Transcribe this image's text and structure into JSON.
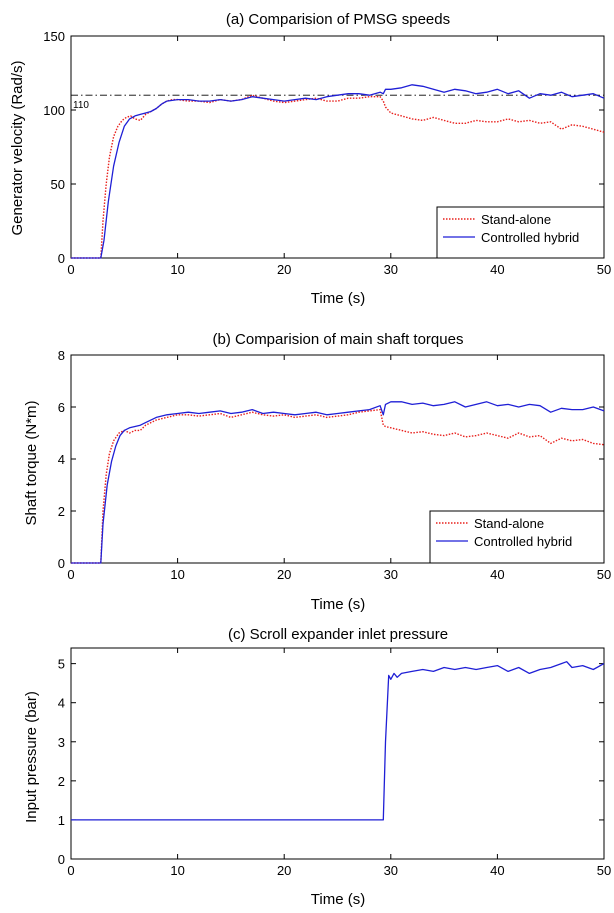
{
  "chart_data": [
    {
      "type": "line",
      "title": "(a) Comparision of PMSG speeds",
      "xlabel": "Time (s)",
      "ylabel": "Generator velocity (Rad/s)",
      "xlim": [
        0,
        50
      ],
      "ylim": [
        0,
        150
      ],
      "xticks": [
        0,
        10,
        20,
        30,
        40,
        50
      ],
      "yticks": [
        0,
        50,
        100,
        150
      ],
      "grid": false,
      "legend_position": "lower-right",
      "annotations": [
        {
          "text": "110",
          "y": 110,
          "style": "dash-dot reference line"
        }
      ],
      "series": [
        {
          "name": "Stand-alone",
          "color": "#e8201c",
          "style": "dotted",
          "x": [
            0,
            2.8,
            3.0,
            3.3,
            3.6,
            4.0,
            4.4,
            4.8,
            5.2,
            5.6,
            6.0,
            6.5,
            7.0,
            7.5,
            8.0,
            8.5,
            9.0,
            9.5,
            10,
            11,
            12,
            13,
            14,
            15,
            16,
            17,
            18,
            19,
            20,
            21,
            22,
            23,
            24,
            25,
            26,
            27,
            28,
            29,
            29.3,
            29.5,
            30,
            31,
            32,
            33,
            34,
            35,
            36,
            37,
            38,
            39,
            40,
            41,
            42,
            43,
            44,
            45,
            46,
            47,
            48,
            49,
            50
          ],
          "y": [
            0,
            0,
            25,
            50,
            68,
            82,
            89,
            93,
            95,
            96,
            94,
            93,
            97,
            99,
            101,
            104,
            106,
            107,
            107,
            106,
            106,
            105,
            107,
            106,
            107,
            110,
            108,
            106,
            105,
            106,
            107,
            108,
            106,
            106,
            108,
            108,
            109,
            109,
            106,
            102,
            98,
            96,
            94,
            93,
            95,
            93,
            91,
            91,
            93,
            92,
            92,
            94,
            92,
            93,
            91,
            92,
            87,
            90,
            89,
            87,
            85
          ]
        },
        {
          "name": "Controlled hybrid",
          "color": "#1f1fd6",
          "style": "solid",
          "x": [
            0,
            2.8,
            3.1,
            3.5,
            4.0,
            4.5,
            5.0,
            5.5,
            6.0,
            6.5,
            7.0,
            7.5,
            8.0,
            8.5,
            9.0,
            10,
            11,
            12,
            13,
            14,
            15,
            16,
            17,
            18,
            19,
            20,
            21,
            22,
            23,
            24,
            25,
            26,
            27,
            28,
            29,
            29.3,
            29.5,
            30,
            31,
            32,
            33,
            34,
            35,
            36,
            37,
            38,
            39,
            40,
            41,
            42,
            43,
            44,
            45,
            46,
            47,
            48,
            49,
            50
          ],
          "y": [
            0,
            0,
            12,
            38,
            62,
            78,
            89,
            94,
            96,
            97,
            98,
            99,
            101,
            104,
            106,
            107,
            107,
            106,
            106,
            107,
            106,
            107,
            109,
            108,
            107,
            106,
            107,
            108,
            107,
            109,
            110,
            111,
            111,
            110,
            112,
            111,
            114,
            114,
            115,
            117,
            116,
            114,
            112,
            114,
            113,
            111,
            112,
            114,
            111,
            113,
            108,
            111,
            110,
            112,
            109,
            110,
            111,
            108
          ]
        }
      ]
    },
    {
      "type": "line",
      "title": "(b) Comparision of main shaft torques",
      "xlabel": "Time (s)",
      "ylabel": "Shaft torque (N*m)",
      "xlim": [
        0,
        50
      ],
      "ylim": [
        0,
        8
      ],
      "xticks": [
        0,
        10,
        20,
        30,
        40,
        50
      ],
      "yticks": [
        0,
        2,
        4,
        6,
        8
      ],
      "grid": false,
      "legend_position": "lower-right",
      "series": [
        {
          "name": "Stand-alone",
          "color": "#e8201c",
          "style": "dotted",
          "x": [
            0,
            2.8,
            3.0,
            3.3,
            3.6,
            4.0,
            4.5,
            5.0,
            5.5,
            6.0,
            6.5,
            7.0,
            8.0,
            9.0,
            10,
            11,
            12,
            13,
            14,
            15,
            16,
            17,
            18,
            19,
            20,
            21,
            22,
            23,
            24,
            25,
            26,
            27,
            28,
            29,
            29.3,
            29.5,
            30,
            31,
            32,
            33,
            34,
            35,
            36,
            37,
            38,
            39,
            40,
            41,
            42,
            43,
            44,
            45,
            46,
            47,
            48,
            49,
            50
          ],
          "y": [
            0,
            0,
            2.0,
            3.4,
            4.2,
            4.7,
            5.0,
            5.1,
            5.0,
            5.1,
            5.1,
            5.3,
            5.5,
            5.6,
            5.7,
            5.7,
            5.65,
            5.7,
            5.75,
            5.6,
            5.7,
            5.8,
            5.7,
            5.65,
            5.7,
            5.6,
            5.65,
            5.7,
            5.6,
            5.65,
            5.7,
            5.8,
            5.85,
            5.9,
            5.3,
            5.25,
            5.2,
            5.1,
            5.0,
            5.05,
            4.95,
            4.9,
            5.0,
            4.85,
            4.9,
            5.0,
            4.9,
            4.8,
            5.0,
            4.85,
            4.9,
            4.6,
            4.8,
            4.7,
            4.75,
            4.6,
            4.55
          ]
        },
        {
          "name": "Controlled hybrid",
          "color": "#1f1fd6",
          "style": "solid",
          "x": [
            0,
            2.8,
            3.0,
            3.4,
            3.8,
            4.2,
            4.6,
            5.0,
            5.5,
            6.0,
            6.5,
            7.0,
            8.0,
            9.0,
            10,
            11,
            12,
            13,
            14,
            15,
            16,
            17,
            18,
            19,
            20,
            21,
            22,
            23,
            24,
            25,
            26,
            27,
            28,
            29,
            29.3,
            29.5,
            30,
            31,
            32,
            33,
            34,
            35,
            36,
            37,
            38,
            39,
            40,
            41,
            42,
            43,
            44,
            45,
            46,
            47,
            48,
            49,
            50
          ],
          "y": [
            0,
            0,
            1.5,
            3.0,
            3.9,
            4.5,
            4.9,
            5.1,
            5.2,
            5.25,
            5.3,
            5.4,
            5.6,
            5.7,
            5.75,
            5.8,
            5.75,
            5.8,
            5.85,
            5.75,
            5.8,
            5.9,
            5.75,
            5.8,
            5.75,
            5.7,
            5.75,
            5.8,
            5.7,
            5.75,
            5.8,
            5.85,
            5.9,
            6.05,
            5.7,
            6.1,
            6.2,
            6.2,
            6.1,
            6.15,
            6.05,
            6.1,
            6.2,
            6.0,
            6.1,
            6.2,
            6.05,
            6.1,
            6.0,
            6.1,
            6.05,
            5.8,
            5.95,
            5.9,
            5.9,
            6.0,
            5.85
          ]
        }
      ]
    },
    {
      "type": "line",
      "title": "(c) Scroll expander inlet pressure",
      "xlabel": "Time (s)",
      "ylabel": "Input pressure (bar)",
      "xlim": [
        0,
        50
      ],
      "ylim": [
        0,
        5.4
      ],
      "xticks": [
        0,
        10,
        20,
        30,
        40,
        50
      ],
      "yticks": [
        0,
        1,
        2,
        3,
        4,
        5
      ],
      "grid": false,
      "series": [
        {
          "color": "#1f1fd6",
          "style": "solid",
          "x": [
            0,
            10,
            20,
            29.3,
            29.5,
            29.8,
            30.0,
            30.3,
            30.6,
            31,
            32,
            33,
            34,
            35,
            36,
            37,
            38,
            39,
            40,
            41,
            42,
            43,
            44,
            45,
            46,
            46.5,
            47,
            48,
            49,
            50
          ],
          "y": [
            1.0,
            1.0,
            1.0,
            1.0,
            3.0,
            4.7,
            4.6,
            4.75,
            4.65,
            4.75,
            4.8,
            4.85,
            4.8,
            4.9,
            4.85,
            4.9,
            4.85,
            4.9,
            4.95,
            4.8,
            4.9,
            4.75,
            4.85,
            4.9,
            5.0,
            5.05,
            4.9,
            4.95,
            4.85,
            5.0
          ]
        }
      ]
    }
  ]
}
